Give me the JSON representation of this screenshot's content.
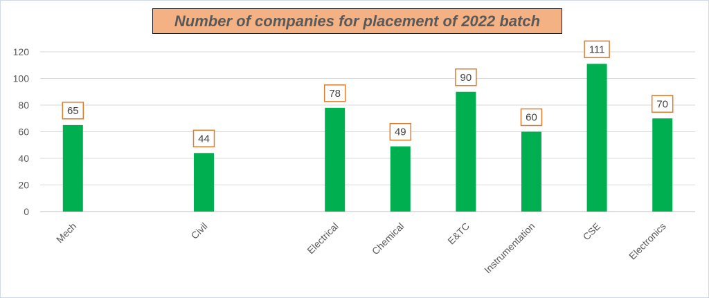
{
  "chart_data": {
    "type": "bar",
    "title": "Number of companies for placement of 2022 batch",
    "xlabel": "",
    "ylabel": "",
    "categories": [
      "Mech",
      "Civil",
      "Electrical",
      "Chemical",
      "E&TC",
      "Instrumentation",
      "CSE",
      "Electronics"
    ],
    "values": [
      65,
      44,
      78,
      49,
      90,
      60,
      111,
      70
    ],
    "ylim": [
      0,
      120
    ],
    "yticks": [
      0,
      20,
      40,
      60,
      80,
      100,
      120
    ],
    "grid": true,
    "legend": "none",
    "colors": {
      "bar": "#00b050",
      "label_border": "#e07b2c",
      "title_fill": "#f4b183",
      "grid": "#d9d9d9",
      "axis_text": "#595959"
    }
  }
}
